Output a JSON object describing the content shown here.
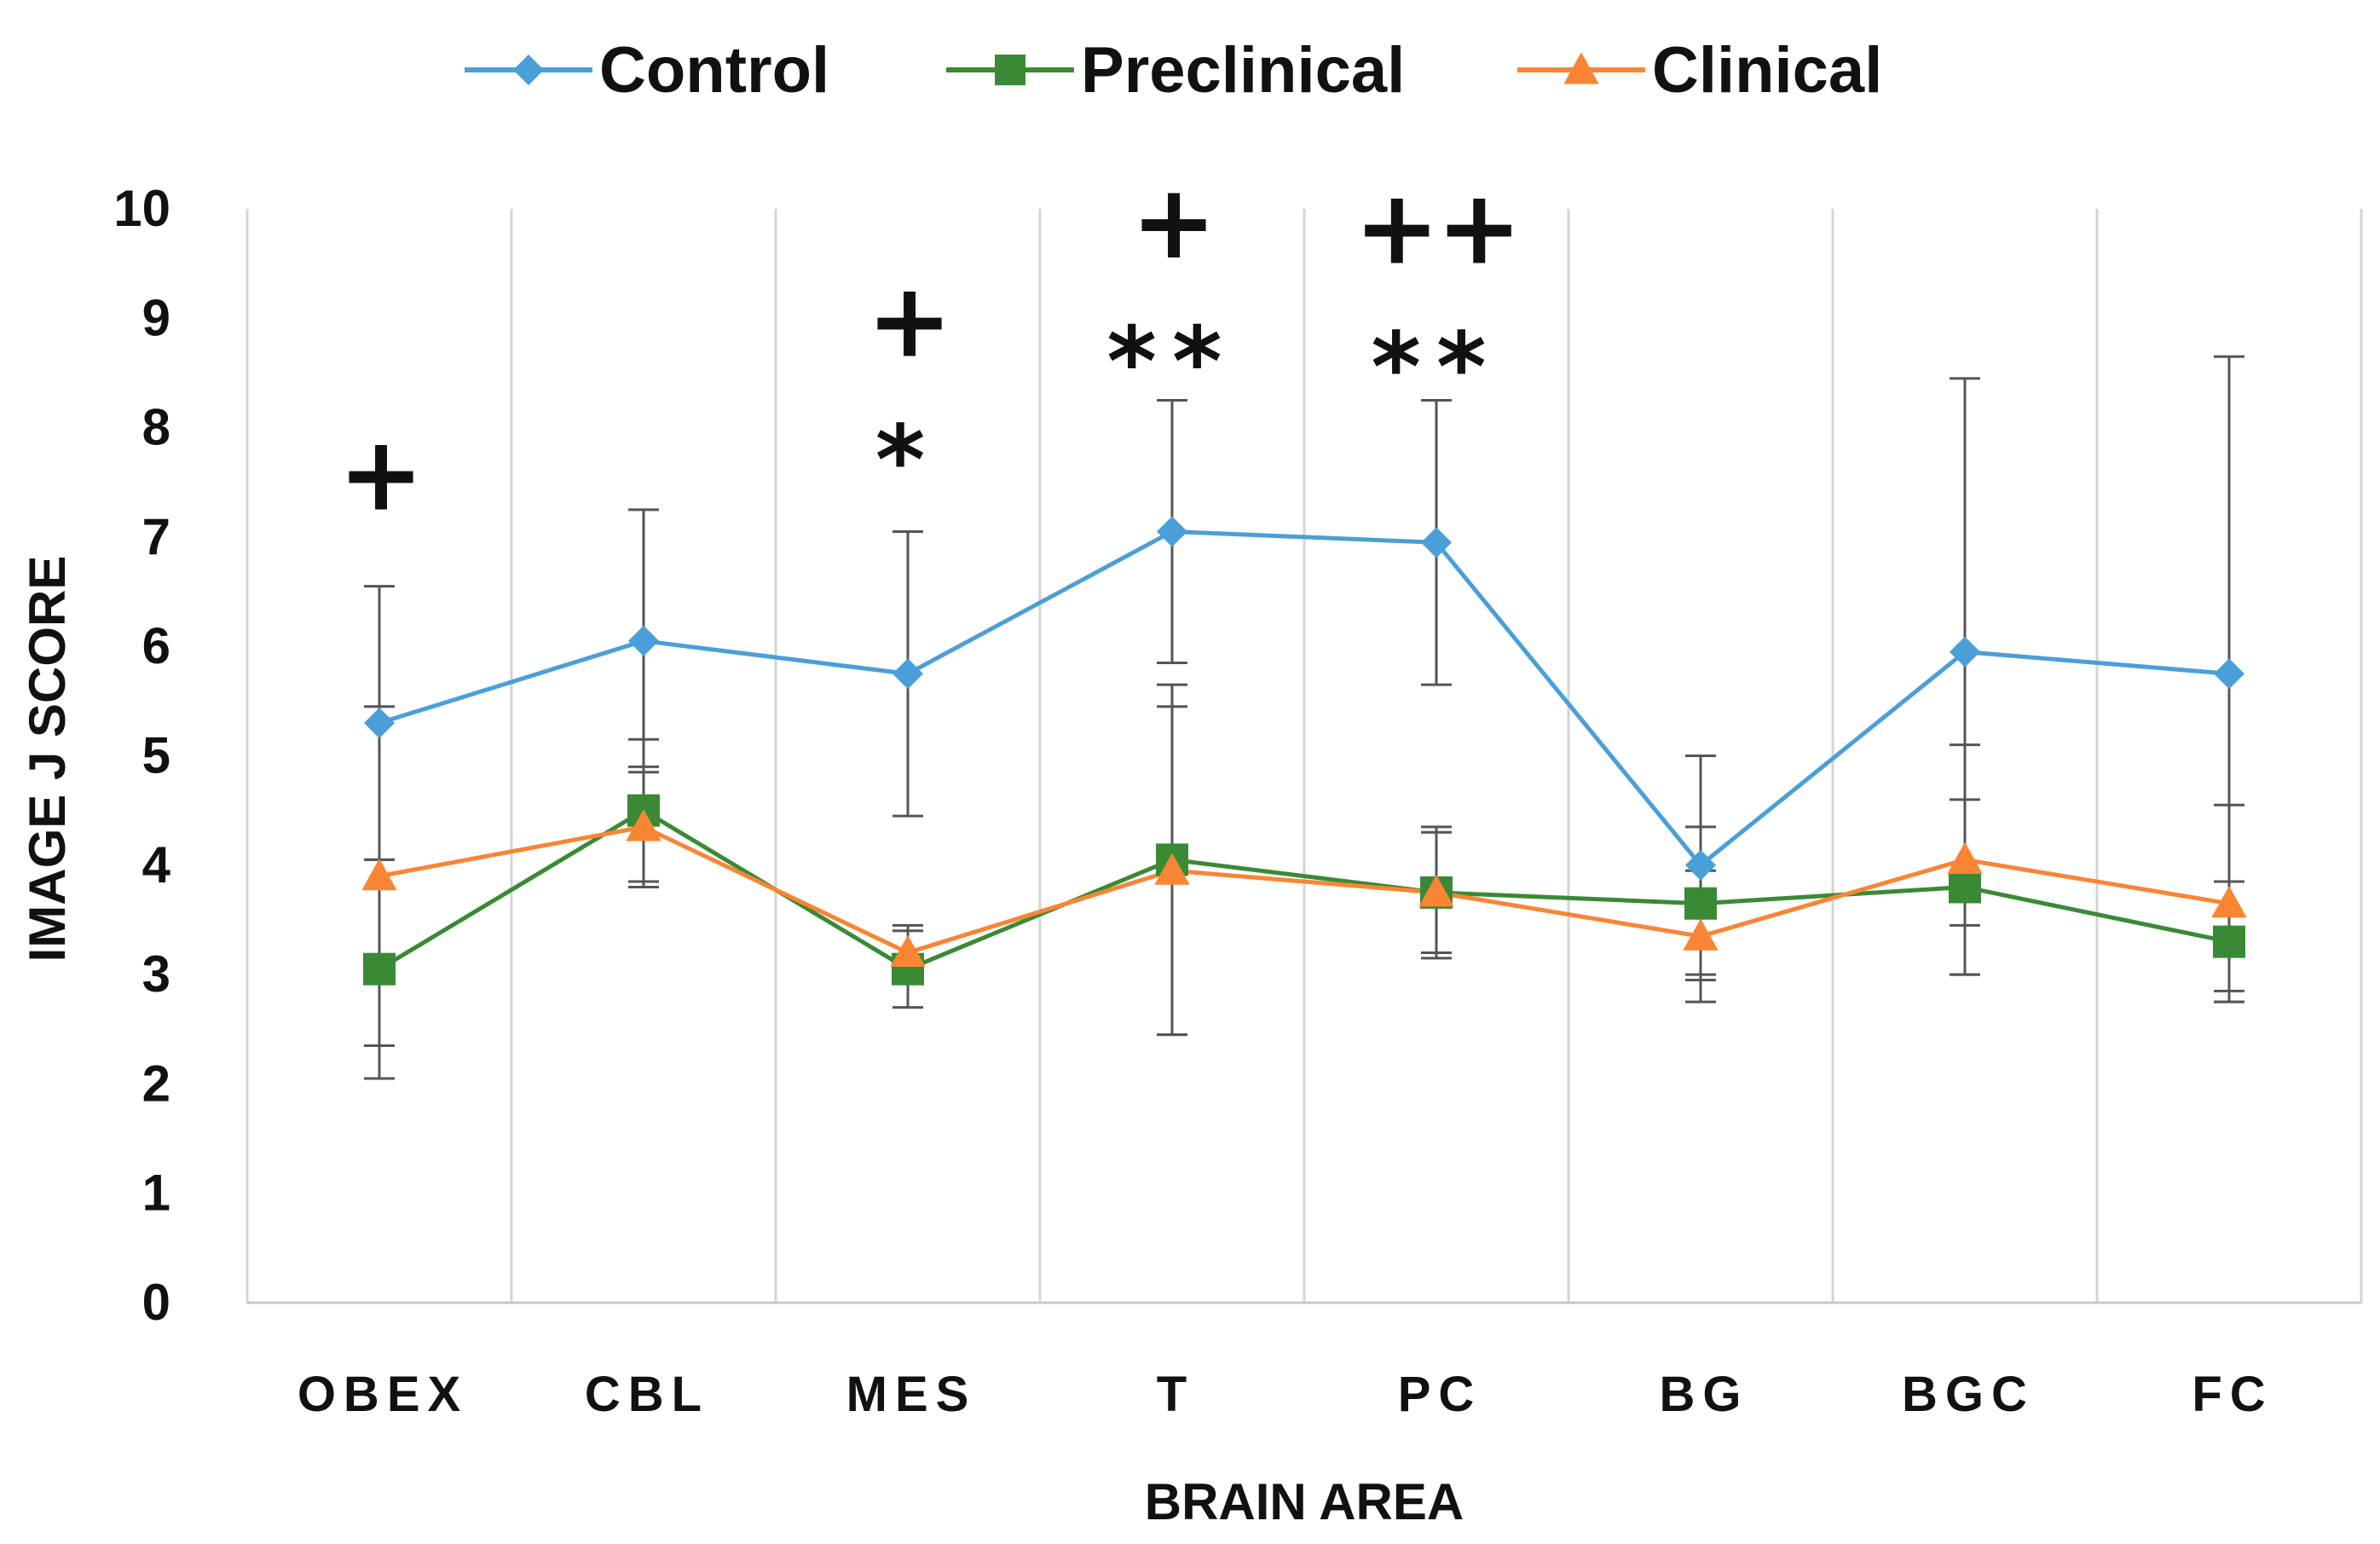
{
  "chart_data": {
    "type": "line",
    "title": "",
    "xlabel": "BRAIN AREA",
    "ylabel": "IMAGE J SCORE",
    "ylim": [
      0,
      10
    ],
    "yticks": [
      "0",
      "1",
      "2",
      "3",
      "4",
      "5",
      "6",
      "7",
      "8",
      "9",
      "10"
    ],
    "categories": [
      "OBEX",
      "CBL",
      "MES",
      "T",
      "PC",
      "BG",
      "BGC",
      "FC"
    ],
    "legend_position": "top",
    "grid": "vertical",
    "series": [
      {
        "name": "Control",
        "color": "#4a9fd8",
        "marker": "diamond",
        "values": [
          5.3,
          6.05,
          5.75,
          7.05,
          6.95,
          4.0,
          5.95,
          5.75
        ],
        "errors": [
          1.25,
          1.2,
          1.3,
          1.2,
          1.3,
          1.0,
          2.5,
          2.9
        ]
      },
      {
        "name": "Preclinical",
        "color": "#3a8a35",
        "marker": "square",
        "values": [
          3.05,
          4.5,
          3.05,
          4.05,
          3.75,
          3.65,
          3.8,
          3.3
        ],
        "errors": [
          1.0,
          0.65,
          0.35,
          1.6,
          0.55,
          0.7,
          0.8,
          0.55
        ]
      },
      {
        "name": "Clinical",
        "color": "#f98534",
        "marker": "triangle",
        "values": [
          3.9,
          4.35,
          3.2,
          3.95,
          3.75,
          3.35,
          4.05,
          3.65
        ],
        "errors": [
          1.55,
          0.55,
          0.25,
          1.5,
          0.6,
          0.6,
          1.05,
          0.9
        ]
      }
    ],
    "annotations": [
      {
        "category": "OBEX",
        "text": "+",
        "y": 7.55
      },
      {
        "category": "MES",
        "text": "+",
        "y": 8.95
      },
      {
        "category": "MES",
        "text": "*",
        "y": 7.85
      },
      {
        "category": "T",
        "text": "+",
        "y": 9.85
      },
      {
        "category": "T",
        "text": "**",
        "y": 8.75
      },
      {
        "category": "PC",
        "text": "++",
        "y": 9.8
      },
      {
        "category": "PC",
        "text": "**",
        "y": 8.7
      }
    ]
  }
}
